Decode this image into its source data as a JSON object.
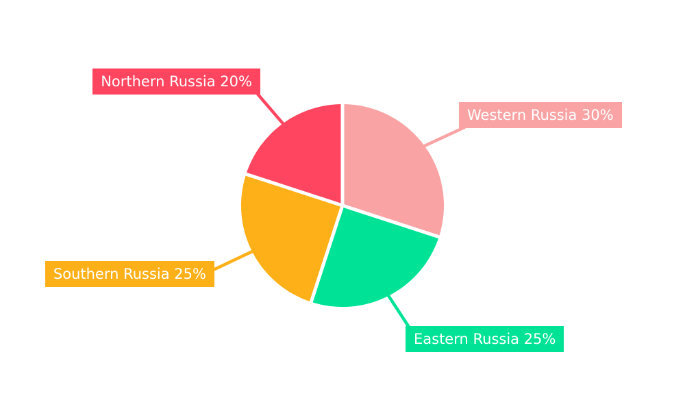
{
  "page": {
    "background": "#ffffff",
    "text_color": "#ffffff"
  },
  "chart_data": {
    "type": "pie",
    "title": "",
    "direction": "clockwise",
    "start_angle_deg": 0,
    "legend": "none",
    "label_style": "external colored callout boxes with matching leader lines",
    "background": "#ffffff",
    "slices": [
      {
        "id": "western",
        "name": "Western Russia",
        "value": 30,
        "unit": "%",
        "label": "Western Russia 30%",
        "color": "#F9A3A4"
      },
      {
        "id": "eastern",
        "name": "Eastern Russia",
        "value": 25,
        "unit": "%",
        "label": "Eastern Russia 25%",
        "color": "#00E396"
      },
      {
        "id": "southern",
        "name": "Southern Russia",
        "value": 25,
        "unit": "%",
        "label": "Southern Russia 25%",
        "color": "#FEB019"
      },
      {
        "id": "northern",
        "name": "Northern Russia",
        "value": 20,
        "unit": "%",
        "label": "Northern Russia 20%",
        "color": "#FF4560"
      }
    ]
  }
}
